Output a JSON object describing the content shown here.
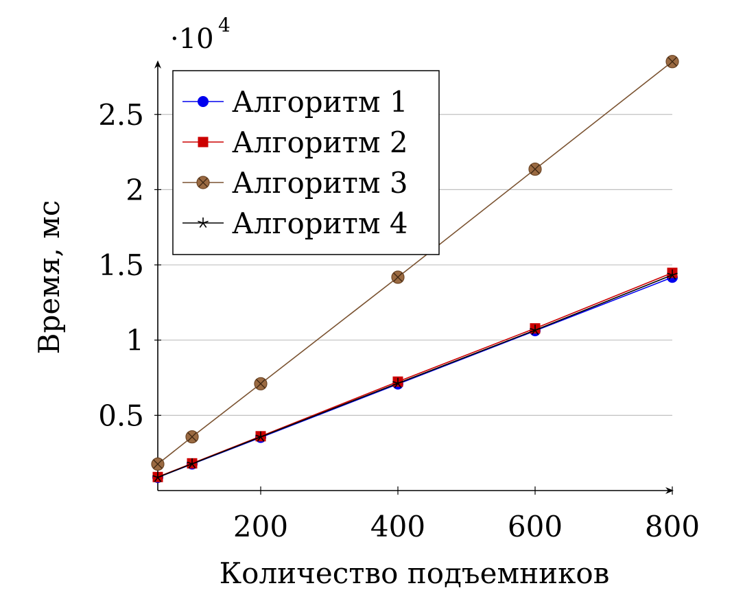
{
  "chart_data": {
    "type": "line",
    "xlabel": "Количество подъемников",
    "ylabel": "Время, мс",
    "y_scale_label": "·10",
    "y_scale_exponent": "4",
    "x_ticks": [
      200,
      400,
      600,
      800
    ],
    "x_tick_labels": [
      "200",
      "400",
      "600",
      "800"
    ],
    "y_ticks": [
      5000,
      10000,
      15000,
      20000,
      25000
    ],
    "y_tick_labels": [
      "0.5",
      "1",
      "1.5",
      "2",
      "2.5"
    ],
    "xlim": [
      50,
      800
    ],
    "ylim": [
      0,
      28500
    ],
    "grid": "horizontal",
    "legend_position": "top-left",
    "x": [
      50,
      100,
      200,
      400,
      600,
      800
    ],
    "series": [
      {
        "name": "Алгоритм 1",
        "color": "#0000ee",
        "marker": "circle",
        "values": [
          870,
          1760,
          3530,
          7080,
          10620,
          14170
        ]
      },
      {
        "name": "Алгоритм 2",
        "color": "#cc0000",
        "marker": "square",
        "values": [
          900,
          1810,
          3610,
          7240,
          10780,
          14470
        ]
      },
      {
        "name": "Алгоритм 3",
        "color": "#7a5230",
        "marker": "otimes",
        "values": [
          1760,
          3570,
          7100,
          14180,
          21360,
          28510
        ]
      },
      {
        "name": "Алгоритм 4",
        "color": "#000000",
        "marker": "star",
        "values": [
          880,
          1780,
          3570,
          7130,
          10660,
          14330
        ]
      }
    ]
  }
}
